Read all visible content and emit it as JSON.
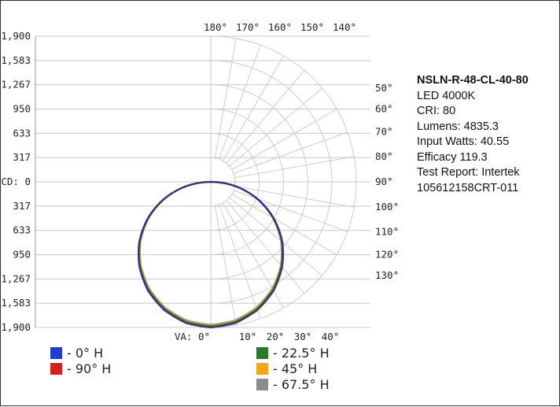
{
  "info": {
    "model": "NSLN-R-48-CL-40-80",
    "lines": [
      "LED 4000K",
      "CRI: 80",
      "Lumens: 4835.3",
      "Input Watts: 40.55",
      "Efficacy 119.3",
      "Test Report: Intertek",
      "105612158CRT-011"
    ]
  },
  "colors": {
    "h0": "#1f3fd0",
    "h90": "#d42020",
    "h22_5": "#2a7a2a",
    "h45": "#f0a818",
    "h67_5": "#8c8c8c",
    "grid": "#c8c8c8"
  },
  "legend": {
    "h0": "- 0° H",
    "h90": "- 90° H",
    "h22_5": "- 22.5° H",
    "h45": "- 45° H",
    "h67_5": "- 67.5° H"
  },
  "chart_data": {
    "type": "polar",
    "title": "",
    "cd_axis_label": "CD: 0",
    "va_axis_label": "VA: 0°",
    "cd_ticks_upper": [
      "1,900",
      "1,583",
      "1,267",
      "950",
      "633",
      "317"
    ],
    "cd_ticks_lower": [
      "317",
      "633",
      "950",
      "1,267",
      "1,583",
      "1,900"
    ],
    "cd_max": 1900,
    "cd_ring_values": [
      317,
      633,
      950,
      1267,
      1583,
      1900
    ],
    "angle_labels_bottom": [
      "10°",
      "20°",
      "30°",
      "40°"
    ],
    "angle_labels_top": [
      "180°",
      "170°",
      "160°",
      "150°",
      "140°"
    ],
    "angle_labels_right": [
      "130°",
      "120°",
      "110°",
      "100°",
      "90°",
      "80°",
      "70°",
      "60°",
      "50°"
    ],
    "grid": true,
    "series": [
      {
        "name": "0° H",
        "color_key": "h0"
      },
      {
        "name": "90° H",
        "color_key": "h90"
      },
      {
        "name": "22.5° H",
        "color_key": "h22_5"
      },
      {
        "name": "45° H",
        "color_key": "h45"
      },
      {
        "name": "67.5° H",
        "color_key": "h67_5"
      }
    ],
    "candela_by_vertical_angle": {
      "vertical_angles": [
        0,
        10,
        20,
        30,
        40,
        50,
        60,
        70,
        80,
        90
      ],
      "values": [
        1900,
        1870,
        1780,
        1640,
        1450,
        1220,
        950,
        650,
        330,
        0
      ]
    },
    "series_scale": [
      1.0,
      1.0,
      0.99,
      0.985,
      0.98
    ]
  }
}
